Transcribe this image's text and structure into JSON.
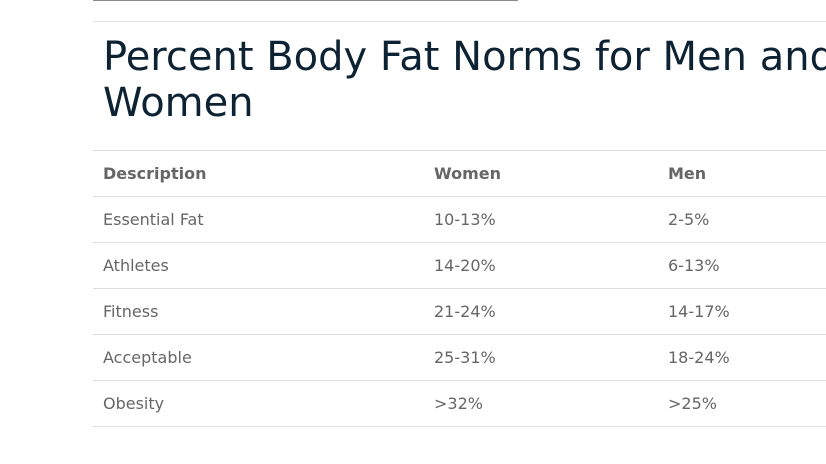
{
  "title": "Percent Body Fat Norms for Men and Women",
  "table": {
    "headers": {
      "description": "Description",
      "women": "Women",
      "men": "Men"
    },
    "rows": [
      {
        "description": "Essential Fat",
        "women": "10-13%",
        "men": "2-5%"
      },
      {
        "description": "Athletes",
        "women": "14-20%",
        "men": "6-13%"
      },
      {
        "description": "Fitness",
        "women": "21-24%",
        "men": "14-17%"
      },
      {
        "description": "Acceptable",
        "women": "25-31%",
        "men": "18-24%"
      },
      {
        "description": "Obesity",
        "women": ">32%",
        "men": ">25%"
      }
    ]
  }
}
